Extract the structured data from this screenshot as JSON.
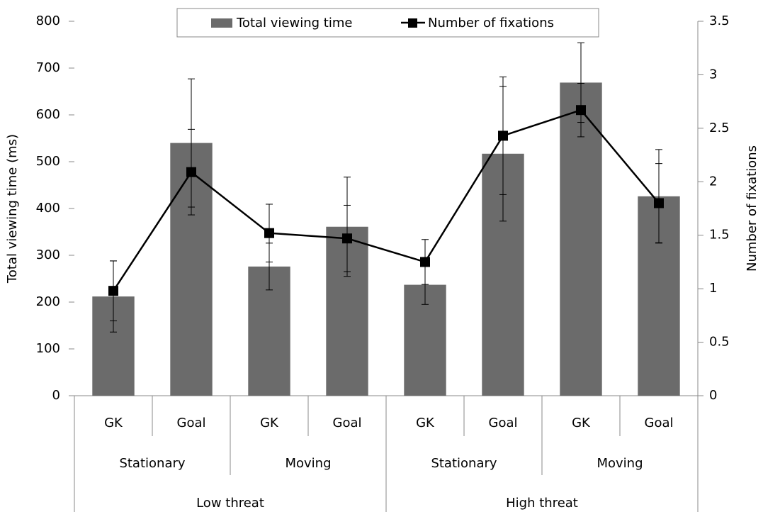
{
  "chart_data": {
    "type": "bar_line",
    "categories": [
      "GK",
      "Goal",
      "GK",
      "Goal",
      "GK",
      "Goal",
      "GK",
      "Goal"
    ],
    "group_labels": [
      "Stationary",
      "Moving",
      "Stationary",
      "Moving"
    ],
    "supergroup_labels": [
      "Low threat",
      "High threat"
    ],
    "y_label": "Total viewing time (ms)",
    "y2_label": "Number of fixations",
    "ylim": [
      0,
      800
    ],
    "yticks": [
      0,
      100,
      200,
      300,
      400,
      500,
      600,
      700,
      800
    ],
    "y2lim": [
      0,
      3.5
    ],
    "y2ticks": [
      0,
      0.5,
      1,
      1.5,
      2,
      2.5,
      3,
      3.5
    ],
    "legend": "top",
    "series": [
      {
        "name": "Total viewing time",
        "type": "bar",
        "color": "#6b6b6b",
        "values": [
          212,
          540,
          276,
          361,
          237,
          517,
          669,
          426
        ],
        "errors": [
          76,
          137,
          50,
          106,
          42,
          144,
          85,
          100
        ]
      },
      {
        "name": "Number of fixations",
        "type": "line",
        "axis": "y2",
        "color": "#000000",
        "values": [
          0.98,
          2.09,
          1.52,
          1.47,
          1.25,
          2.43,
          2.67,
          1.8
        ],
        "errors": [
          0.28,
          0.4,
          0.27,
          0.31,
          0.21,
          0.55,
          0.25,
          0.37
        ]
      }
    ]
  }
}
